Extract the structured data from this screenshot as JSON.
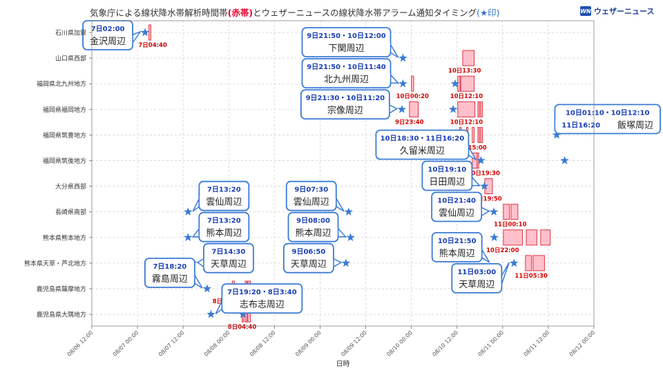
{
  "page": {
    "title_pre": "気象庁による線状降水帯解析時間帯",
    "title_red": "(赤帯)",
    "title_mid": "とウェザーニュースの線状降水帯アラーム通知タイミング",
    "title_blue": "(★印)",
    "logo_mark": "WN",
    "logo_text": "ウェザーニュース"
  },
  "chart_data": {
    "type": "scatter",
    "xlabel": "日時",
    "x_range_hours": [
      -12,
      120
    ],
    "x_origin": "08/07 00:00",
    "x_ticks": [
      {
        "h": -12,
        "label": "08/06 12:00"
      },
      {
        "h": 0,
        "label": "08/07 00:00"
      },
      {
        "h": 12,
        "label": "08/07 12:00"
      },
      {
        "h": 24,
        "label": "08/08 00:00"
      },
      {
        "h": 36,
        "label": "08/08 12:00"
      },
      {
        "h": 48,
        "label": "08/09 00:00"
      },
      {
        "h": 60,
        "label": "08/09 12:00"
      },
      {
        "h": 72,
        "label": "08/10 00:00"
      },
      {
        "h": 84,
        "label": "08/10 12:00"
      },
      {
        "h": 96,
        "label": "08/11 00:00"
      },
      {
        "h": 108,
        "label": "08/11 12:00"
      },
      {
        "h": 120,
        "label": "08/12 00:00"
      }
    ],
    "regions": [
      "石川県加賀",
      "山口県西部",
      "福岡県北九州地方",
      "福岡県福岡地方",
      "福岡県筑豊地方",
      "福岡県筑後地方",
      "大分県西部",
      "長崎県南部",
      "熊本県熊本地方",
      "熊本県天草・芦北地方",
      "鹿児島県薩摩地方",
      "鹿児島県大隅地方"
    ],
    "bands": [
      {
        "row": 0,
        "start": 3.0,
        "end": 3.5
      },
      {
        "row": 1,
        "start": 85.5,
        "end": 88.5
      },
      {
        "row": 2,
        "start": 72.0,
        "end": 72.6
      },
      {
        "row": 2,
        "start": 84.2,
        "end": 84.8
      },
      {
        "row": 2,
        "start": 85.0,
        "end": 88.5
      },
      {
        "row": 3,
        "start": 71.5,
        "end": 73.8
      },
      {
        "row": 3,
        "start": 84.2,
        "end": 88.7
      },
      {
        "row": 3,
        "start": 89.5,
        "end": 89.9
      },
      {
        "row": 3,
        "start": 90.2,
        "end": 90.7
      },
      {
        "row": 4,
        "start": 84.7,
        "end": 85.1
      },
      {
        "row": 4,
        "start": 86.5,
        "end": 86.9
      },
      {
        "row": 4,
        "start": 88.0,
        "end": 88.5
      },
      {
        "row": 4,
        "start": 89.5,
        "end": 89.9
      },
      {
        "row": 4,
        "start": 90.2,
        "end": 90.7
      },
      {
        "row": 5,
        "start": 88.0,
        "end": 89.3
      },
      {
        "row": 5,
        "start": 89.3,
        "end": 89.7
      },
      {
        "row": 6,
        "start": 91.3,
        "end": 93.3
      },
      {
        "row": 7,
        "start": 96.2,
        "end": 97.8
      },
      {
        "row": 7,
        "start": 98.2,
        "end": 100.0
      },
      {
        "row": 8,
        "start": 96.2,
        "end": 101.2
      },
      {
        "row": 8,
        "start": 102.2,
        "end": 105.0
      },
      {
        "row": 8,
        "start": 106.0,
        "end": 108.5
      },
      {
        "row": 9,
        "start": 102.0,
        "end": 103.6
      },
      {
        "row": 9,
        "start": 104.0,
        "end": 107.0
      },
      {
        "row": 10,
        "start": 24.9,
        "end": 25.5
      },
      {
        "row": 10,
        "start": 28.3,
        "end": 28.8
      },
      {
        "row": 10,
        "start": 29.0,
        "end": 29.7
      },
      {
        "row": 11,
        "start": 27.5,
        "end": 27.9
      },
      {
        "row": 11,
        "start": 28.3,
        "end": 28.8
      },
      {
        "row": 11,
        "start": 29.0,
        "end": 29.7
      }
    ],
    "stars": [
      {
        "row": 0,
        "h": 2.0
      },
      {
        "row": 1,
        "h": 69.8
      },
      {
        "row": 2,
        "h": 69.8
      },
      {
        "row": 2,
        "h": 83.5
      },
      {
        "row": 3,
        "h": 69.5
      },
      {
        "row": 3,
        "h": 83.0
      },
      {
        "row": 4,
        "h": 73.2
      },
      {
        "row": 4,
        "h": 84.3
      },
      {
        "row": 4,
        "h": 110.2
      },
      {
        "row": 5,
        "h": 90.3
      },
      {
        "row": 5,
        "h": 112.3
      },
      {
        "row": 6,
        "h": 91.2
      },
      {
        "row": 7,
        "h": 13.3
      },
      {
        "row": 7,
        "h": 55.5
      },
      {
        "row": 7,
        "h": 93.7
      },
      {
        "row": 8,
        "h": 13.3
      },
      {
        "row": 8,
        "h": 56.0
      },
      {
        "row": 8,
        "h": 93.8
      },
      {
        "row": 9,
        "h": 14.5
      },
      {
        "row": 9,
        "h": 54.8
      },
      {
        "row": 9,
        "h": 99.0
      },
      {
        "row": 10,
        "h": 18.3
      },
      {
        "row": 11,
        "h": 19.3
      },
      {
        "row": 11,
        "h": 27.7
      }
    ],
    "band_labels": [
      {
        "text": "7日04:40",
        "h": 4.0,
        "row": 0
      },
      {
        "text": "10日13:30",
        "h": 86.0,
        "row": 1
      },
      {
        "text": "10日00:20",
        "h": 72.3,
        "row": 2
      },
      {
        "text": "10日12:10",
        "h": 86.5,
        "row": 2
      },
      {
        "text": "9日23:40",
        "h": 71.5,
        "row": 3
      },
      {
        "text": "10日12:10",
        "h": 86.5,
        "row": 3
      },
      {
        "text": "10日15:00",
        "h": 87.5,
        "row": 4
      },
      {
        "text": "10日19:30",
        "h": 91.0,
        "row": 5
      },
      {
        "text": "10日19:50",
        "h": 91.5,
        "row": 6
      },
      {
        "text": "11日00:10",
        "h": 98.0,
        "row": 7
      },
      {
        "text": "10日22:00",
        "h": 96.0,
        "row": 8
      },
      {
        "text": "11日05:30",
        "h": 103.5,
        "row": 9
      },
      {
        "text": "8日01:00",
        "h": 23.5,
        "row": 10
      },
      {
        "text": "8日04:40",
        "h": 27.5,
        "row": 11
      }
    ],
    "callouts": [
      {
        "time": "7日02:00",
        "place": "金沢周辺",
        "h": 2.0,
        "row": 0,
        "align": "left"
      },
      {
        "time": "9日21:50・10日12:00",
        "place": "下関周辺",
        "h": 69.8,
        "row": 1,
        "align": "left"
      },
      {
        "time": "9日21:50・10日11:40",
        "place": "北九州周辺",
        "h": 69.8,
        "row": 2,
        "align": "left"
      },
      {
        "time": "9日21:30・10日11:20",
        "place": "宗像周辺",
        "h": 69.5,
        "row": 3,
        "align": "left"
      },
      {
        "time": "10日01:10・10日12:10",
        "time2": "11日16:20",
        "place": "飯塚周辺",
        "h": 110.2,
        "row": 4,
        "align": "right"
      },
      {
        "time": "10日18:30・11日16:20",
        "place": "久留米周辺",
        "h": 90.3,
        "row": 5,
        "align": "left"
      },
      {
        "time": "10日19:10",
        "place": "日田周辺",
        "h": 91.2,
        "row": 6,
        "align": "left"
      },
      {
        "time": "7日13:20",
        "place": "雲仙周辺",
        "h": 13.3,
        "row": 7,
        "align": "right"
      },
      {
        "time": "9日07:30",
        "place": "雲仙周辺",
        "h": 55.5,
        "row": 7,
        "align": "left"
      },
      {
        "time": "10日21:40",
        "place": "雲仙周辺",
        "h": 93.7,
        "row": 7,
        "align": "left"
      },
      {
        "time": "7日13:20",
        "place": "熊本周辺",
        "h": 13.3,
        "row": 8,
        "align": "right"
      },
      {
        "time": "9日08:00",
        "place": "熊本周辺",
        "h": 56.0,
        "row": 8,
        "align": "left"
      },
      {
        "time": "10日21:50",
        "place": "熊本周辺",
        "h": 93.8,
        "row": 9,
        "align": "left"
      },
      {
        "time": "7日14:30",
        "place": "天草周辺",
        "h": 14.5,
        "row": 9,
        "align": "right"
      },
      {
        "time": "9日06:50",
        "place": "天草周辺",
        "h": 54.8,
        "row": 9,
        "align": "left"
      },
      {
        "time": "11日03:00",
        "place": "天草周辺",
        "h": 99.0,
        "row": 9,
        "align": "left"
      },
      {
        "time": "7日18:20",
        "place": "霧島周辺",
        "h": 18.3,
        "row": 10,
        "align": "left"
      },
      {
        "time": "7日19:20・8日3:40",
        "place": "志布志周辺",
        "h": 19.3,
        "row": 11,
        "align": "right"
      }
    ],
    "colors": {
      "band_fill": "#ffc0cc",
      "band_stroke": "#e0303c",
      "star": "#3a7bd5",
      "callout_border": "#3a7bd5",
      "callout_time": "#1a3fb8",
      "band_label": "#d40000",
      "grid": "#cccccc"
    }
  }
}
